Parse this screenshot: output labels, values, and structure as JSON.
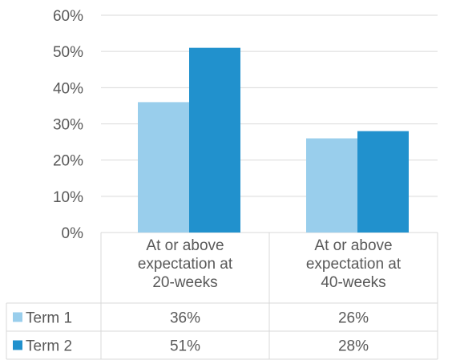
{
  "chart_data": {
    "type": "bar",
    "categories": [
      [
        "At or above",
        "expectation at",
        "20-weeks"
      ],
      [
        "At or above",
        "expectation at",
        "40-weeks"
      ]
    ],
    "series": [
      {
        "name": "Term 1",
        "values": [
          36,
          26
        ],
        "labels": [
          "36%",
          "26%"
        ],
        "color": "#99CEEC"
      },
      {
        "name": "Term 2",
        "values": [
          51,
          28
        ],
        "labels": [
          "51%",
          "28%"
        ],
        "color": "#2191CD"
      }
    ],
    "y_ticks": [
      "0%",
      "10%",
      "20%",
      "30%",
      "40%",
      "50%",
      "60%"
    ],
    "ylim": [
      0,
      60
    ],
    "grid": true,
    "legend": "data-table",
    "colors": {
      "gridline": "#D9D9D9",
      "text": "#595959"
    }
  }
}
